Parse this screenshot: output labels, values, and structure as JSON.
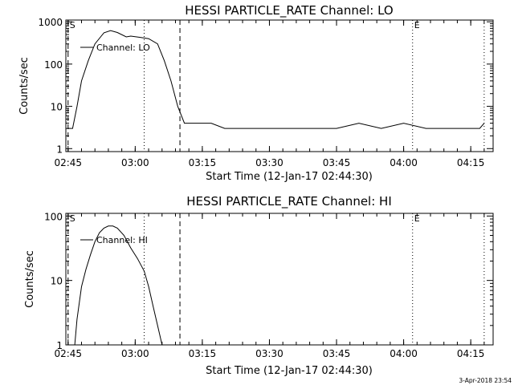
{
  "footer": "3-Apr-2018 23:54",
  "chart_data": [
    {
      "type": "line",
      "title": "HESSI PARTICLE_RATE Channel: LO",
      "xlabel": "Start Time (12-Jan-17 02:44:30)",
      "ylabel": "Counts/sec",
      "x_ticks": [
        "02:45",
        "03:00",
        "03:15",
        "03:30",
        "03:45",
        "04:00",
        "04:15"
      ],
      "y_ticks": [
        "1",
        "10",
        "100",
        "1000"
      ],
      "xlim": [
        "02:44:30",
        "04:20:00"
      ],
      "ylim": [
        0.85,
        1100
      ],
      "yscale": "log",
      "legend": "top-left",
      "series": [
        {
          "name": "Channel: LO",
          "color": "#000000",
          "points": [
            [
              "02:45:00",
              3
            ],
            [
              "02:46:00",
              3
            ],
            [
              "02:47:00",
              10
            ],
            [
              "02:48:00",
              40
            ],
            [
              "02:49:30",
              120
            ],
            [
              "02:51:00",
              300
            ],
            [
              "02:53:00",
              550
            ],
            [
              "02:54:30",
              620
            ],
            [
              "02:56:00",
              560
            ],
            [
              "02:58:00",
              440
            ],
            [
              "02:59:00",
              460
            ],
            [
              "03:01:00",
              430
            ],
            [
              "03:03:00",
              400
            ],
            [
              "03:05:00",
              300
            ],
            [
              "03:06:30",
              120
            ],
            [
              "03:08:00",
              40
            ],
            [
              "03:09:30",
              10
            ],
            [
              "03:11:00",
              4
            ],
            [
              "03:13:00",
              4
            ],
            [
              "03:15:00",
              4
            ],
            [
              "03:17:00",
              4
            ],
            [
              "03:20:00",
              3
            ],
            [
              "03:25:00",
              3
            ],
            [
              "03:30:00",
              3
            ],
            [
              "03:35:00",
              3
            ],
            [
              "03:40:00",
              3
            ],
            [
              "03:45:00",
              3
            ],
            [
              "03:50:00",
              4
            ],
            [
              "03:55:00",
              3
            ],
            [
              "04:00:00",
              4
            ],
            [
              "04:05:00",
              3
            ],
            [
              "04:08:00",
              3
            ],
            [
              "04:12:00",
              3
            ],
            [
              "04:15:00",
              3
            ],
            [
              "04:17:00",
              3
            ],
            [
              "04:18:00",
              4
            ]
          ]
        }
      ],
      "markers": [
        {
          "time": "02:45:00",
          "style": "dashed",
          "label": "S"
        },
        {
          "time": "03:02:00",
          "style": "dotted",
          "label": ""
        },
        {
          "time": "03:10:00",
          "style": "dashed",
          "label": ""
        },
        {
          "time": "04:02:00",
          "style": "dotted",
          "label": "E"
        },
        {
          "time": "04:18:00",
          "style": "dotted",
          "label": ""
        }
      ]
    },
    {
      "type": "line",
      "title": "HESSI PARTICLE_RATE Channel: HI",
      "xlabel": "Start Time (12-Jan-17 02:44:30)",
      "ylabel": "Counts/sec",
      "x_ticks": [
        "02:45",
        "03:00",
        "03:15",
        "03:30",
        "03:45",
        "04:00",
        "04:15"
      ],
      "y_ticks": [
        "1",
        "10",
        "100"
      ],
      "xlim": [
        "02:44:30",
        "04:20:00"
      ],
      "ylim": [
        1,
        110
      ],
      "yscale": "log",
      "legend": "top-left",
      "series": [
        {
          "name": "Channel: HI",
          "color": "#000000",
          "points": [
            [
              "02:46:30",
              1
            ],
            [
              "02:47:00",
              2.5
            ],
            [
              "02:48:00",
              8
            ],
            [
              "02:49:00",
              15
            ],
            [
              "02:50:00",
              25
            ],
            [
              "02:51:00",
              40
            ],
            [
              "02:52:00",
              55
            ],
            [
              "02:53:00",
              65
            ],
            [
              "02:54:00",
              70
            ],
            [
              "02:55:00",
              70
            ],
            [
              "02:56:00",
              65
            ],
            [
              "02:57:30",
              50
            ],
            [
              "02:59:00",
              32
            ],
            [
              "03:00:30",
              22
            ],
            [
              "03:02:00",
              14
            ],
            [
              "03:03:00",
              8
            ],
            [
              "03:04:00",
              4
            ],
            [
              "03:05:00",
              2
            ],
            [
              "03:06:00",
              1
            ]
          ]
        }
      ],
      "markers": [
        {
          "time": "02:45:00",
          "style": "dashed",
          "label": "S"
        },
        {
          "time": "03:02:00",
          "style": "dotted",
          "label": ""
        },
        {
          "time": "03:10:00",
          "style": "dashed",
          "label": ""
        },
        {
          "time": "04:02:00",
          "style": "dotted",
          "label": "E"
        },
        {
          "time": "04:18:00",
          "style": "dotted",
          "label": ""
        }
      ]
    }
  ]
}
